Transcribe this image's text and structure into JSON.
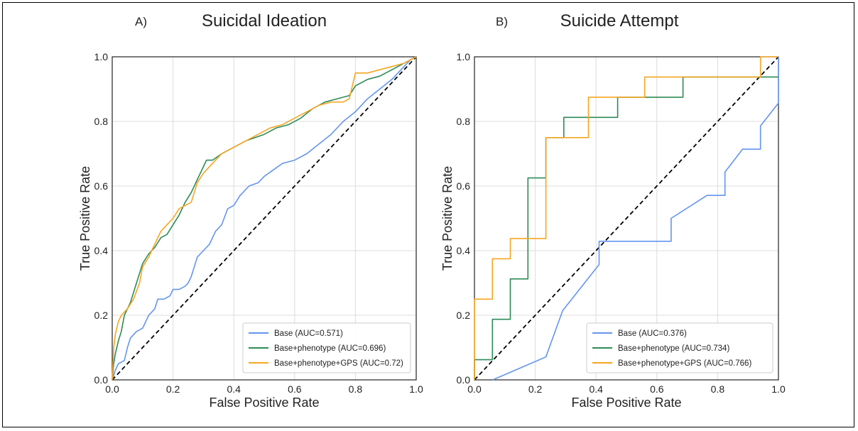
{
  "chart_data": [
    {
      "type": "line",
      "panel_label": "A)",
      "title": "Suicidal Ideation",
      "xlabel": "False Positive Rate",
      "ylabel": "True Positive Rate",
      "xlim": [
        0,
        1
      ],
      "ylim": [
        0,
        1
      ],
      "xticks": [
        0.0,
        0.2,
        0.4,
        0.6,
        0.8,
        1.0
      ],
      "yticks": [
        0.0,
        0.2,
        0.4,
        0.6,
        0.8,
        1.0
      ],
      "xtick_labels": [
        "0.0",
        "0.2",
        "0.4",
        "0.6",
        "0.8",
        "1.0"
      ],
      "ytick_labels": [
        "0.0",
        "0.2",
        "0.4",
        "0.6",
        "0.8",
        "1.0"
      ],
      "grid": true,
      "legend_position": "lower-right",
      "diagonal": {
        "x": [
          0,
          1
        ],
        "y": [
          0,
          1
        ],
        "style": "dashed",
        "color": "#000000"
      },
      "series": [
        {
          "name": "Base (AUC=0.571)",
          "color": "#6495ED",
          "x": [
            0.0,
            0.01,
            0.02,
            0.04,
            0.05,
            0.06,
            0.08,
            0.1,
            0.12,
            0.14,
            0.15,
            0.17,
            0.19,
            0.2,
            0.22,
            0.24,
            0.25,
            0.26,
            0.28,
            0.3,
            0.32,
            0.34,
            0.36,
            0.38,
            0.4,
            0.42,
            0.45,
            0.48,
            0.5,
            0.53,
            0.56,
            0.6,
            0.64,
            0.68,
            0.72,
            0.76,
            0.8,
            0.84,
            0.88,
            0.92,
            0.96,
            0.98,
            1.0
          ],
          "y": [
            0.0,
            0.03,
            0.05,
            0.06,
            0.1,
            0.13,
            0.15,
            0.16,
            0.2,
            0.22,
            0.25,
            0.25,
            0.26,
            0.28,
            0.28,
            0.29,
            0.3,
            0.32,
            0.38,
            0.4,
            0.42,
            0.46,
            0.48,
            0.53,
            0.54,
            0.57,
            0.6,
            0.61,
            0.63,
            0.65,
            0.67,
            0.68,
            0.7,
            0.73,
            0.76,
            0.8,
            0.83,
            0.87,
            0.9,
            0.93,
            0.97,
            0.99,
            1.0
          ]
        },
        {
          "name": "Base+phenotype (AUC=0.696)",
          "color": "#2E8B57",
          "x": [
            0.0,
            0.005,
            0.01,
            0.02,
            0.03,
            0.04,
            0.06,
            0.08,
            0.1,
            0.12,
            0.14,
            0.16,
            0.18,
            0.2,
            0.22,
            0.24,
            0.26,
            0.28,
            0.3,
            0.31,
            0.33,
            0.36,
            0.4,
            0.44,
            0.5,
            0.54,
            0.58,
            0.62,
            0.66,
            0.7,
            0.74,
            0.78,
            0.8,
            0.84,
            0.88,
            0.92,
            0.96,
            1.0
          ],
          "y": [
            0.0,
            0.05,
            0.08,
            0.12,
            0.15,
            0.2,
            0.24,
            0.3,
            0.36,
            0.39,
            0.41,
            0.44,
            0.45,
            0.48,
            0.51,
            0.55,
            0.58,
            0.62,
            0.66,
            0.68,
            0.68,
            0.7,
            0.72,
            0.74,
            0.76,
            0.78,
            0.79,
            0.81,
            0.84,
            0.86,
            0.87,
            0.88,
            0.91,
            0.93,
            0.94,
            0.96,
            0.98,
            1.0
          ]
        },
        {
          "name": "Base+phenotype+GPS (AUC=0.72)",
          "color": "#F5A623",
          "x": [
            0.0,
            0.005,
            0.01,
            0.02,
            0.03,
            0.05,
            0.07,
            0.09,
            0.1,
            0.12,
            0.14,
            0.16,
            0.18,
            0.2,
            0.22,
            0.24,
            0.26,
            0.28,
            0.3,
            0.32,
            0.34,
            0.36,
            0.38,
            0.4,
            0.44,
            0.48,
            0.52,
            0.56,
            0.6,
            0.64,
            0.68,
            0.72,
            0.76,
            0.78,
            0.8,
            0.84,
            0.88,
            0.92,
            0.96,
            1.0
          ],
          "y": [
            0.0,
            0.1,
            0.14,
            0.18,
            0.2,
            0.22,
            0.25,
            0.3,
            0.35,
            0.38,
            0.42,
            0.46,
            0.48,
            0.5,
            0.53,
            0.54,
            0.55,
            0.61,
            0.64,
            0.66,
            0.68,
            0.7,
            0.71,
            0.72,
            0.74,
            0.76,
            0.78,
            0.79,
            0.81,
            0.83,
            0.85,
            0.86,
            0.86,
            0.87,
            0.95,
            0.95,
            0.96,
            0.97,
            0.98,
            1.0
          ]
        }
      ]
    },
    {
      "type": "line",
      "panel_label": "B)",
      "title": "Suicide Attempt",
      "xlabel": "False Positive Rate",
      "ylabel": "True Positive Rate",
      "xlim": [
        0,
        1
      ],
      "ylim": [
        0,
        1
      ],
      "xticks": [
        0.0,
        0.2,
        0.4,
        0.6,
        0.8,
        1.0
      ],
      "yticks": [
        0.0,
        0.2,
        0.4,
        0.6,
        0.8,
        1.0
      ],
      "xtick_labels": [
        "0.0",
        "0.2",
        "0.4",
        "0.6",
        "0.8",
        "1.0"
      ],
      "ytick_labels": [
        "0.0",
        "0.2",
        "0.4",
        "0.6",
        "0.8",
        "1.0"
      ],
      "grid": true,
      "legend_position": "lower-right",
      "diagonal": {
        "x": [
          0,
          1
        ],
        "y": [
          0,
          1
        ],
        "style": "dashed",
        "color": "#000000"
      },
      "series": [
        {
          "name": "Base (AUC=0.376)",
          "color": "#6495ED",
          "x": [
            0.06,
            0.235,
            0.29,
            0.41,
            0.41,
            0.42,
            0.647,
            0.647,
            0.765,
            0.824,
            0.824,
            0.882,
            0.941,
            0.941,
            1.0,
            1.0
          ],
          "y": [
            0.0,
            0.071,
            0.214,
            0.357,
            0.429,
            0.429,
            0.429,
            0.5,
            0.571,
            0.571,
            0.643,
            0.714,
            0.714,
            0.786,
            0.857,
            1.0
          ]
        },
        {
          "name": "Base+phenotype (AUC=0.734)",
          "color": "#2E8B57",
          "x": [
            0.0,
            0.0,
            0.059,
            0.059,
            0.118,
            0.118,
            0.176,
            0.176,
            0.235,
            0.235,
            0.294,
            0.294,
            0.353,
            0.353,
            0.412,
            0.412,
            0.471,
            0.471,
            0.529,
            0.588,
            0.647,
            0.686,
            0.686,
            0.941,
            1.0
          ],
          "y": [
            0.0,
            0.0625,
            0.0625,
            0.1875,
            0.1875,
            0.3125,
            0.3125,
            0.625,
            0.625,
            0.75,
            0.75,
            0.8125,
            0.8125,
            0.8125,
            0.8125,
            0.8125,
            0.8125,
            0.875,
            0.875,
            0.875,
            0.875,
            0.875,
            0.9375,
            0.9375,
            0.9375
          ]
        },
        {
          "name": "Base+phenotype+GPS (AUC=0.766)",
          "color": "#F5A623",
          "x": [
            0.0,
            0.0,
            0.059,
            0.059,
            0.118,
            0.118,
            0.235,
            0.235,
            0.375,
            0.375,
            0.56,
            0.56,
            0.941,
            0.941,
            1.0
          ],
          "y": [
            0.0,
            0.25,
            0.25,
            0.375,
            0.375,
            0.4375,
            0.4375,
            0.75,
            0.75,
            0.875,
            0.875,
            0.9375,
            0.9375,
            1.0,
            1.0
          ]
        }
      ]
    }
  ]
}
